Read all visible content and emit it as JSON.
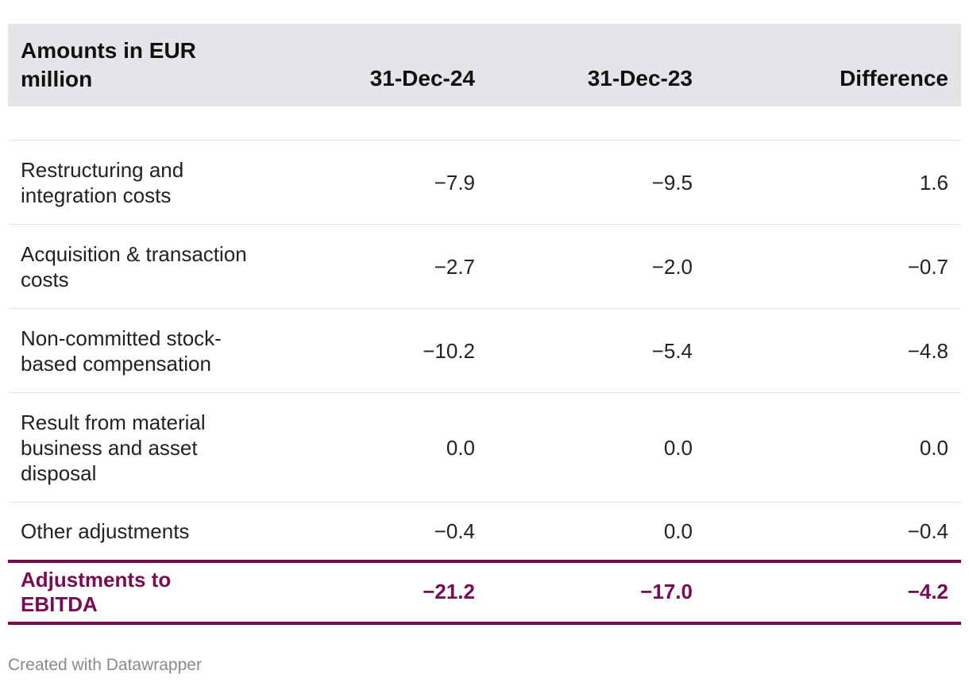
{
  "chart_data": {
    "type": "table",
    "columns": [
      "Amounts in EUR million",
      "31-Dec-24",
      "31-Dec-23",
      "Difference"
    ],
    "rows": [
      {
        "label": "Restructuring and integration costs",
        "values": [
          "−7.9",
          "−9.5",
          "1.6"
        ]
      },
      {
        "label": "Acquisition & transaction costs",
        "values": [
          "−2.7",
          "−2.0",
          "−0.7"
        ]
      },
      {
        "label": "Non-committed stock-based compensation",
        "values": [
          "−10.2",
          "−5.4",
          "−4.8"
        ]
      },
      {
        "label": "Result from material business and asset disposal",
        "values": [
          "0.0",
          "0.0",
          "0.0"
        ]
      },
      {
        "label": "Other adjustments",
        "values": [
          "−0.4",
          "0.0",
          "−0.4"
        ]
      }
    ],
    "total": {
      "label": "Adjustments to EBITDA",
      "values": [
        "−21.2",
        "−17.0",
        "−4.2"
      ]
    },
    "accent_color": "#7a0b52",
    "header_bg": "#e4e5e9"
  },
  "footer": {
    "credit": "Created with Datawrapper"
  }
}
